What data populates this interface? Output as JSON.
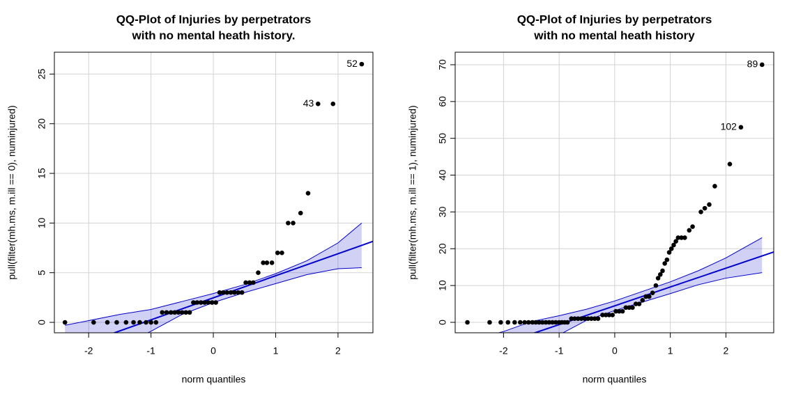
{
  "chart_data": [
    {
      "type": "qq",
      "title_lines": [
        "QQ-Plot of Injuries by perpetrators",
        "with no mental heath history."
      ],
      "xlabel": "norm quantiles",
      "ylabel": "pull(filter(mh.ms, m.ill == 0), numinjured)",
      "x": [
        -2.38,
        -1.92,
        -1.7,
        -1.55,
        -1.4,
        -1.28,
        -1.18,
        -1.08,
        -1.0,
        -0.92,
        -0.82,
        -0.75,
        -0.68,
        -0.62,
        -0.56,
        -0.5,
        -0.44,
        -0.38,
        -0.32,
        -0.26,
        -0.2,
        -0.14,
        -0.08,
        -0.02,
        0.04,
        0.1,
        0.16,
        0.22,
        0.28,
        0.34,
        0.4,
        0.46,
        0.52,
        0.58,
        0.64,
        0.72,
        0.8,
        0.86,
        0.94,
        1.03,
        1.1,
        1.2,
        1.28,
        1.4,
        1.52,
        1.68,
        1.92,
        2.38
      ],
      "values": [
        0,
        0,
        0,
        0,
        0,
        0,
        0,
        0,
        0,
        0,
        1,
        1,
        1,
        1,
        1,
        1,
        1,
        1,
        2,
        2,
        2,
        2,
        2,
        2,
        2,
        3,
        3,
        3,
        3,
        3,
        3,
        3,
        4,
        4,
        4,
        5,
        6,
        6,
        6,
        7,
        7,
        10,
        10,
        11,
        13,
        22,
        22,
        26
      ],
      "annotations": [
        {
          "x": 2.38,
          "y": 26,
          "text": "52"
        },
        {
          "x": 1.68,
          "y": 22,
          "text": "43"
        }
      ],
      "reference_line": {
        "intercept": 2.47,
        "slope": 2.22,
        "color": "#0000cd"
      },
      "envelope": {
        "x": [
          -2.38,
          -1.5,
          -1,
          -0.5,
          0,
          0.5,
          1,
          1.5,
          2,
          2.38
        ],
        "upper": [
          -0.3,
          0.8,
          1.3,
          2.1,
          2.9,
          3.8,
          4.9,
          6.2,
          8.0,
          10
        ],
        "lower": [
          -5.2,
          -2.4,
          -0.9,
          0.8,
          2.0,
          3.0,
          3.9,
          4.8,
          5.4,
          5.5
        ],
        "color": "#0000cd"
      },
      "xlim": [
        -2.55,
        2.56
      ],
      "ylim": [
        -1.05,
        27.2
      ],
      "xticks": [
        -2,
        -1,
        0,
        1,
        2
      ],
      "yticks": [
        0,
        5,
        10,
        15,
        20,
        25
      ],
      "grid": true,
      "color": "#000000"
    },
    {
      "type": "qq",
      "title_lines": [
        "QQ-Plot of Injuries by perpetrators",
        "with no mental heath history"
      ],
      "xlabel": "norm quantiles",
      "ylabel": "pull(filter(mh.ms, m.ill == 1), numinjured)",
      "x": [
        -2.65,
        -2.25,
        -2.05,
        -1.92,
        -1.8,
        -1.7,
        -1.62,
        -1.55,
        -1.48,
        -1.42,
        -1.36,
        -1.3,
        -1.24,
        -1.18,
        -1.12,
        -1.06,
        -1.0,
        -0.95,
        -0.9,
        -0.85,
        -0.78,
        -0.72,
        -0.66,
        -0.6,
        -0.54,
        -0.48,
        -0.42,
        -0.36,
        -0.3,
        -0.22,
        -0.16,
        -0.1,
        -0.04,
        0.02,
        0.08,
        0.14,
        0.2,
        0.26,
        0.32,
        0.38,
        0.44,
        0.5,
        0.56,
        0.62,
        0.68,
        0.74,
        0.78,
        0.82,
        0.86,
        0.9,
        0.94,
        0.98,
        1.02,
        1.06,
        1.1,
        1.14,
        1.2,
        1.26,
        1.34,
        1.4,
        1.55,
        1.62,
        1.7,
        1.8,
        2.07,
        2.27,
        2.65
      ],
      "values": [
        0,
        0,
        0,
        0,
        0,
        0,
        0,
        0,
        0,
        0,
        0,
        0,
        0,
        0,
        0,
        0,
        0,
        0,
        0,
        0,
        1,
        1,
        1,
        1,
        1,
        1,
        1,
        1,
        1,
        2,
        2,
        2,
        2,
        3,
        3,
        3,
        4,
        4,
        4,
        5,
        5,
        6,
        7,
        7,
        8,
        10,
        12,
        13,
        14,
        16,
        17,
        19,
        20,
        21,
        22,
        23,
        23,
        23,
        25,
        26,
        30,
        31,
        32,
        37,
        43,
        53,
        70
      ],
      "annotations": [
        {
          "x": 2.65,
          "y": 70,
          "text": "89"
        },
        {
          "x": 2.27,
          "y": 53,
          "text": "102"
        }
      ],
      "reference_line": {
        "intercept": 4.49,
        "slope": 5.11,
        "color": "#0000cd"
      },
      "envelope": {
        "x": [
          -2.65,
          -2,
          -1.5,
          -1,
          -0.5,
          0,
          0.5,
          1,
          1.5,
          2,
          2.65
        ],
        "upper": [
          -5,
          -2.5,
          0.2,
          1.8,
          3.6,
          5.8,
          8.4,
          11,
          14,
          17.5,
          23
        ],
        "lower": [
          -19,
          -12,
          -7,
          -3.4,
          0.6,
          3.2,
          5.5,
          7.8,
          10.2,
          12,
          13.5
        ],
        "color": "#0000cd"
      },
      "xlim": [
        -2.87,
        2.86
      ],
      "ylim": [
        -2.84,
        73.4
      ],
      "xticks": [
        -2,
        -1,
        0,
        1,
        2
      ],
      "yticks": [
        0,
        10,
        20,
        30,
        40,
        50,
        60,
        70
      ],
      "grid": true,
      "color": "#000000"
    }
  ]
}
